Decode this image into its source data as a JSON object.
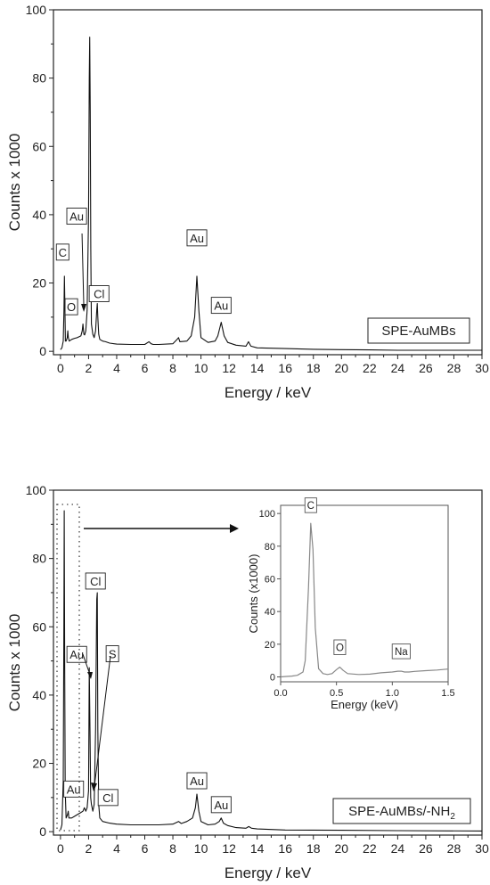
{
  "chart_data": [
    {
      "type": "line",
      "xlabel": "Energy / keV",
      "ylabel": "Counts x 1000",
      "xlim": [
        -0.5,
        30
      ],
      "ylim": [
        -1,
        100
      ],
      "xticks": [
        "0",
        "2",
        "4",
        "6",
        "8",
        "10",
        "12",
        "14",
        "16",
        "18",
        "20",
        "22",
        "24",
        "26",
        "28",
        "30"
      ],
      "yticks": [
        "0",
        "20",
        "40",
        "60",
        "80",
        "100"
      ],
      "sample_label": "SPE-AuMBs",
      "series": [
        {
          "x": [
            0.0,
            0.1,
            0.2,
            0.25,
            0.28,
            0.31,
            0.35,
            0.4,
            0.48,
            0.52,
            0.56,
            0.62,
            0.8,
            1.0,
            1.2,
            1.45,
            1.55,
            1.6,
            1.66,
            1.72,
            1.8,
            1.9,
            2.0,
            2.05,
            2.08,
            2.12,
            2.16,
            2.2,
            2.3,
            2.4,
            2.5,
            2.58,
            2.62,
            2.66,
            2.72,
            2.8,
            3.0,
            3.2,
            3.5,
            4.0,
            5.0,
            6.0,
            6.3,
            6.45,
            6.6,
            7.0,
            8.0,
            8.3,
            8.4,
            8.5,
            9.0,
            9.3,
            9.55,
            9.71,
            9.85,
            10.0,
            10.5,
            11.0,
            11.2,
            11.44,
            11.65,
            11.9,
            12.5,
            13.2,
            13.38,
            13.55,
            14.0,
            16.0,
            18.0,
            20.0,
            22.0,
            24.0,
            26.0,
            28.0,
            30.0
          ],
          "y": [
            0.5,
            1,
            3,
            12,
            22,
            14,
            3,
            3,
            4,
            6,
            4,
            3,
            3.5,
            3.8,
            4,
            4.5,
            6,
            8,
            5,
            4.8,
            6,
            12,
            40,
            80,
            92,
            70,
            30,
            8,
            5,
            4,
            6,
            12,
            14,
            10,
            5,
            3.5,
            3,
            2.8,
            2.4,
            2.1,
            2,
            2,
            2.8,
            2.2,
            2,
            2,
            2.2,
            3.5,
            4,
            2.8,
            3,
            4.5,
            10,
            22,
            12,
            4,
            2.6,
            3,
            4.5,
            8.5,
            4.5,
            2.6,
            1.8,
            1.5,
            2.8,
            1.5,
            1,
            0.8,
            0.6,
            0.5,
            0.4,
            0.3,
            0.3,
            0.3,
            0.3
          ]
        }
      ],
      "annotations": [
        {
          "text": "C",
          "x": 0.28,
          "y": 22
        },
        {
          "text": "O",
          "x": 0.52,
          "y": 6
        },
        {
          "text": "Au",
          "x": 1.66,
          "y": 8
        },
        {
          "text": "Au",
          "x": 2.12,
          "y": 92
        },
        {
          "text": "Cl",
          "x": 2.62,
          "y": 14
        },
        {
          "text": "Au",
          "x": 9.71,
          "y": 22
        },
        {
          "text": "Au",
          "x": 11.44,
          "y": 8.5
        }
      ]
    },
    {
      "type": "line",
      "xlabel": "Energy / keV",
      "ylabel": "Counts x 1000",
      "xlim": [
        -0.5,
        30
      ],
      "ylim": [
        -1,
        100
      ],
      "xticks": [
        "0",
        "2",
        "4",
        "6",
        "8",
        "10",
        "12",
        "14",
        "16",
        "18",
        "20",
        "22",
        "24",
        "26",
        "28",
        "30"
      ],
      "yticks": [
        "0",
        "20",
        "40",
        "60",
        "80",
        "100"
      ],
      "sample_label": "SPE-AuMBs/-NH",
      "sample_label_sub": "2",
      "series": [
        {
          "x": [
            0.0,
            0.1,
            0.2,
            0.24,
            0.27,
            0.3,
            0.34,
            0.4,
            0.5,
            0.55,
            0.6,
            0.8,
            1.0,
            1.2,
            1.4,
            1.6,
            1.7,
            1.8,
            1.9,
            2.0,
            2.05,
            2.1,
            2.15,
            2.2,
            2.3,
            2.4,
            2.5,
            2.58,
            2.62,
            2.66,
            2.72,
            2.8,
            3.0,
            3.5,
            4.0,
            5.0,
            6.0,
            7.0,
            8.0,
            8.4,
            8.6,
            9.0,
            9.4,
            9.6,
            9.71,
            9.85,
            10.0,
            10.5,
            11.0,
            11.3,
            11.44,
            11.6,
            11.9,
            12.5,
            13.2,
            13.4,
            13.6,
            14.0,
            16.0,
            20.0,
            24.0,
            30.0
          ],
          "y": [
            0.5,
            2,
            15,
            60,
            94,
            50,
            12,
            4,
            5,
            6,
            4,
            4,
            4.5,
            5,
            5.5,
            6,
            7,
            6,
            7,
            12,
            48,
            30,
            10,
            8,
            6,
            8,
            30,
            68,
            70,
            30,
            8,
            4,
            3,
            2.5,
            2.2,
            2,
            2,
            2,
            2.2,
            3,
            2.4,
            3,
            4,
            7,
            11,
            6,
            3,
            2,
            2.2,
            3,
            4,
            2.5,
            1.8,
            1.2,
            1,
            1.5,
            1,
            0.8,
            0.5,
            0.4,
            0.3,
            0.2
          ]
        }
      ],
      "annotations": [
        {
          "text": "Au",
          "x": 2.05,
          "y": 48
        },
        {
          "text": "S",
          "x": 2.3,
          "y": 8
        },
        {
          "text": "Cl",
          "x": 2.62,
          "y": 70
        },
        {
          "text": "Au",
          "x": 1.7,
          "y": 7
        },
        {
          "text": "Cl",
          "x": 2.75,
          "y": 4
        },
        {
          "text": "Au",
          "x": 9.71,
          "y": 11
        },
        {
          "text": "Au",
          "x": 11.44,
          "y": 4
        }
      ]
    },
    {
      "type": "line",
      "xlabel": "Energy (keV)",
      "ylabel": "Counts (x1000)",
      "xlim": [
        0,
        1.5
      ],
      "ylim": [
        -3,
        105
      ],
      "xticks": [
        "0.0",
        "0.5",
        "1.0",
        "1.5"
      ],
      "yticks": [
        "0",
        "20",
        "40",
        "60",
        "80",
        "100"
      ],
      "series": [
        {
          "x": [
            0.0,
            0.05,
            0.1,
            0.15,
            0.2,
            0.22,
            0.25,
            0.27,
            0.29,
            0.31,
            0.34,
            0.38,
            0.42,
            0.46,
            0.5,
            0.53,
            0.56,
            0.6,
            0.7,
            0.8,
            0.9,
            1.0,
            1.05,
            1.08,
            1.11,
            1.15,
            1.2,
            1.3,
            1.4,
            1.5
          ],
          "y": [
            0,
            0.3,
            0.5,
            1,
            3,
            10,
            55,
            94,
            78,
            30,
            5,
            2,
            1.5,
            2,
            4.5,
            6,
            4,
            2,
            1.5,
            1.7,
            2.5,
            3,
            3.5,
            3.5,
            3,
            3,
            3.4,
            3.8,
            4.2,
            4.8
          ]
        }
      ],
      "annotations": [
        {
          "text": "C",
          "x": 0.27,
          "y": 94
        },
        {
          "text": "O",
          "x": 0.53,
          "y": 6
        },
        {
          "text": "Na",
          "x": 1.08,
          "y": 3.5
        }
      ]
    }
  ]
}
